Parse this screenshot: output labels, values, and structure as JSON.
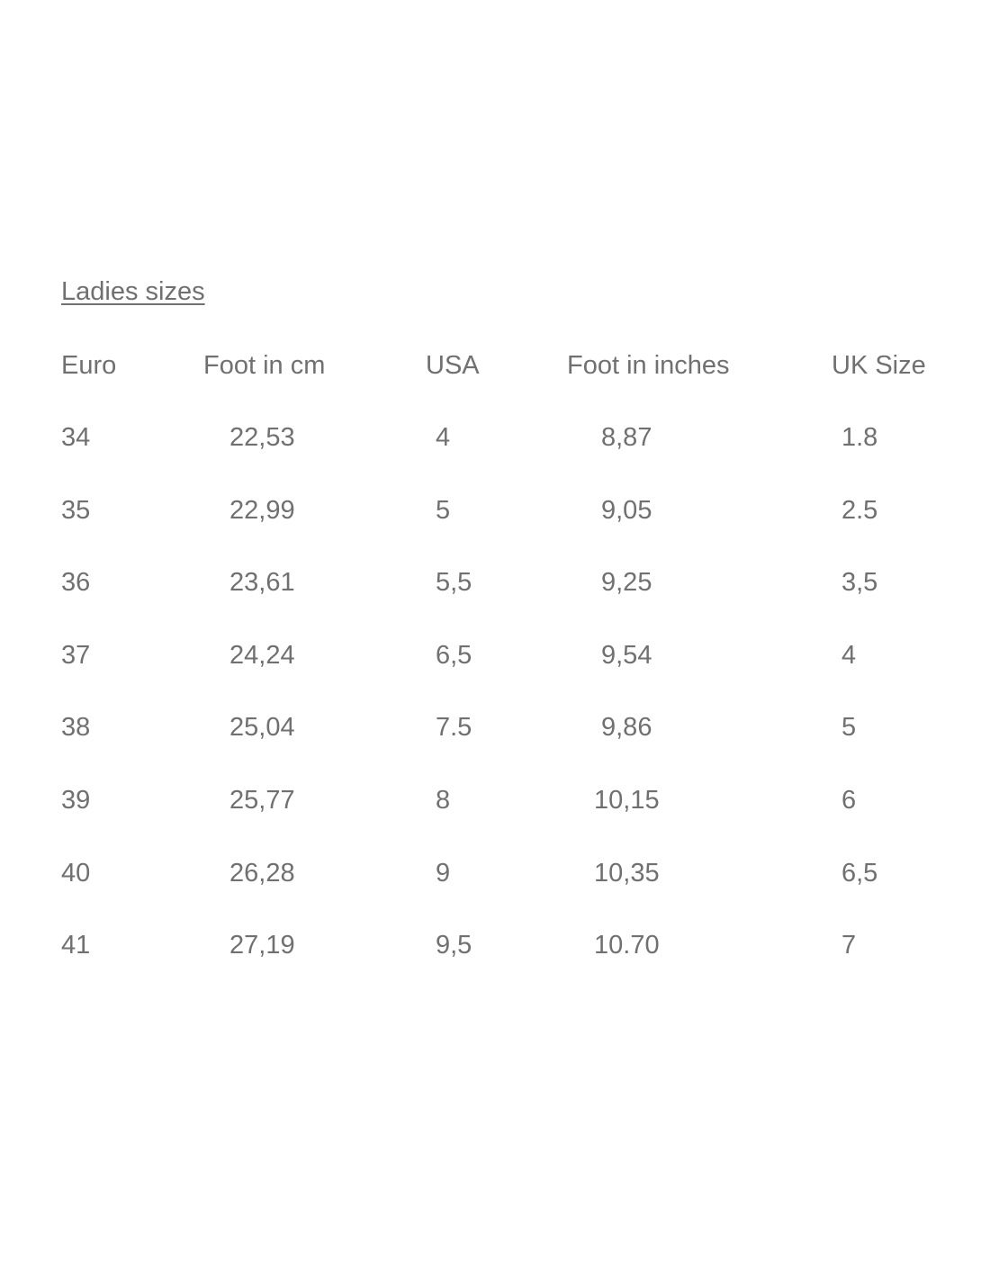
{
  "title": "Ladies sizes",
  "table": {
    "headers": [
      "Euro",
      "Foot in cm",
      "USA",
      "Foot in inches",
      "UK Size"
    ],
    "rows": [
      [
        "34",
        "22,53",
        "4",
        "8,87",
        "1.8"
      ],
      [
        "35",
        "22,99",
        "5",
        "9,05",
        "2.5"
      ],
      [
        "36",
        "23,61",
        "5,5",
        "9,25",
        "3,5"
      ],
      [
        "37",
        "24,24",
        "6,5",
        "9,54",
        "4"
      ],
      [
        "38",
        "25,04",
        "7.5",
        "9,86",
        "5"
      ],
      [
        "39",
        "25,77",
        "8",
        "10,15",
        "6"
      ],
      [
        "40",
        "26,28",
        "9",
        "10,35",
        "6,5"
      ],
      [
        "41",
        "27,19",
        "9,5",
        "10.70",
        "7"
      ]
    ]
  }
}
